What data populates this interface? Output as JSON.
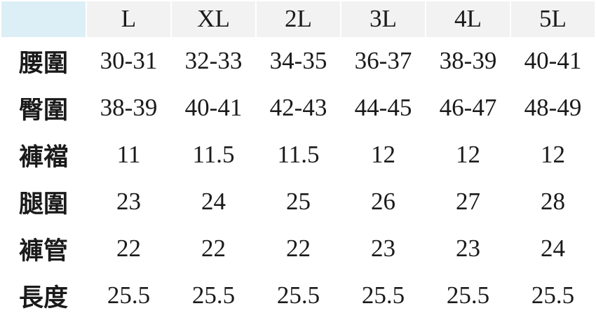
{
  "table": {
    "header": [
      "",
      "L",
      "XL",
      "2L",
      "3L",
      "4L",
      "5L"
    ],
    "rows": [
      [
        "腰圍",
        "30-31",
        "32-33",
        "34-35",
        "36-37",
        "38-39",
        "40-41"
      ],
      [
        "臀圍",
        "38-39",
        "40-41",
        "42-43",
        "44-45",
        "46-47",
        "48-49"
      ],
      [
        "褲襠",
        "11",
        "11.5",
        "11.5",
        "12",
        "12",
        "12"
      ],
      [
        "腿圍",
        "23",
        "24",
        "25",
        "26",
        "27",
        "28"
      ],
      [
        "褲管",
        "22",
        "22",
        "22",
        "23",
        "23",
        "24"
      ],
      [
        "長度",
        "25.5",
        "25.5",
        "25.5",
        "25.5",
        "25.5",
        "25.5"
      ]
    ]
  }
}
